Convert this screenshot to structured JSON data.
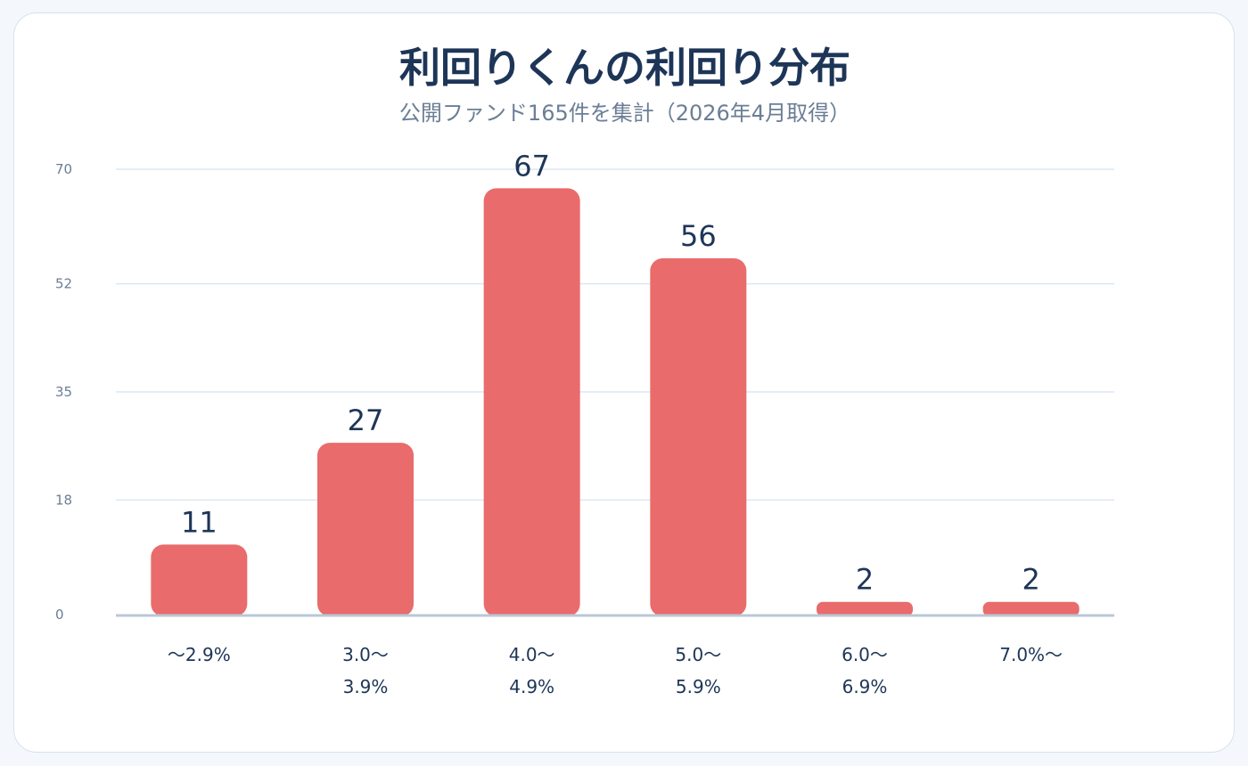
{
  "chart_data": {
    "type": "bar",
    "title": "利回りくんの利回り分布",
    "subtitle": "公開ファンド165件を集計（2026年4月取得）",
    "categories": [
      [
        "〜2.9%"
      ],
      [
        "3.0〜",
        "3.9%"
      ],
      [
        "4.0〜",
        "4.9%"
      ],
      [
        "5.0〜",
        "5.9%"
      ],
      [
        "6.0〜",
        "6.9%"
      ],
      [
        "7.0%〜"
      ]
    ],
    "values": [
      11,
      27,
      67,
      56,
      2,
      2
    ],
    "yticks": [
      "0",
      "18",
      "35",
      "52",
      "70"
    ],
    "ylim": [
      0,
      70
    ],
    "grid": true,
    "bar_color": "#e96b6b",
    "grid_color": "#dbe7f2",
    "axis_color": "#b9c8d8",
    "label_color": "#1d3557",
    "tick_color": "#6b7e95"
  }
}
